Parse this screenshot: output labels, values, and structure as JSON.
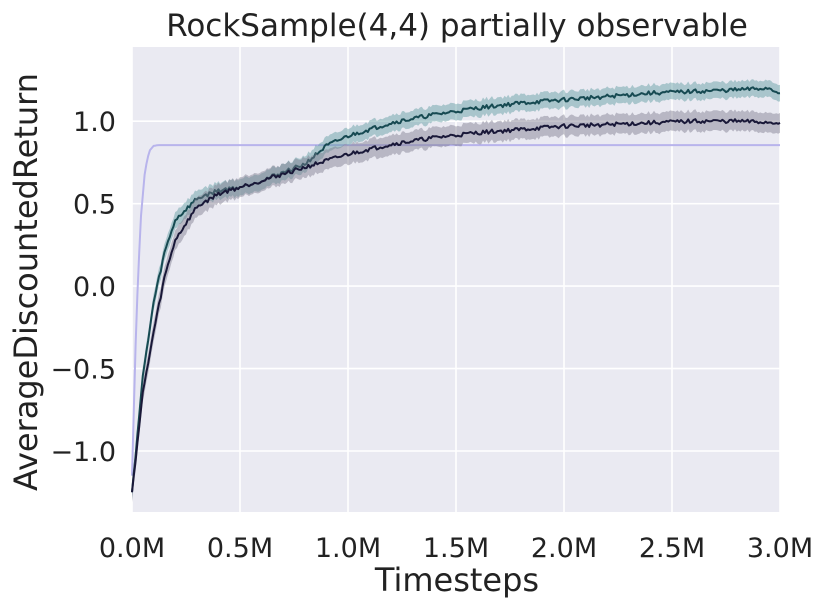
{
  "chart_data": {
    "type": "line",
    "title": "RockSample(4,4) partially observable",
    "xlabel": "Timesteps",
    "ylabel": "AverageDiscountedReturn",
    "xlim": [
      0,
      3.0
    ],
    "ylim": [
      -1.37,
      1.45
    ],
    "x_unit": "millions of timesteps",
    "grid": true,
    "legend": "none",
    "x_ticks": [
      {
        "value": 0.0,
        "label": "0.0M"
      },
      {
        "value": 0.5,
        "label": "0.5M"
      },
      {
        "value": 1.0,
        "label": "1.0M"
      },
      {
        "value": 1.5,
        "label": "1.5M"
      },
      {
        "value": 2.0,
        "label": "2.0M"
      },
      {
        "value": 2.5,
        "label": "2.5M"
      },
      {
        "value": 3.0,
        "label": "3.0M"
      }
    ],
    "y_ticks": [
      {
        "value": -1.0,
        "label": "−1.0"
      },
      {
        "value": -0.5,
        "label": "−0.5"
      },
      {
        "value": 0.0,
        "label": "0.0"
      },
      {
        "value": 0.5,
        "label": "0.5"
      },
      {
        "value": 1.0,
        "label": "1.0"
      }
    ],
    "series": [
      {
        "name": "lavender",
        "color": "#b8b4ec",
        "band_color": "#c8c4f0",
        "x": [
          0,
          0.02,
          0.04,
          0.06,
          0.08,
          0.1,
          0.12,
          0.2,
          3.0
        ],
        "y": [
          -1.15,
          -0.2,
          0.4,
          0.7,
          0.82,
          0.85,
          0.855,
          0.855,
          0.855
        ],
        "band": 0.0
      },
      {
        "name": "teal",
        "color": "#174a52",
        "band_color": "#5a9a9e",
        "x": [
          0,
          0.05,
          0.1,
          0.15,
          0.2,
          0.3,
          0.4,
          0.5,
          0.6,
          0.7,
          0.8,
          0.9,
          1.0,
          1.1,
          1.2,
          1.4,
          1.6,
          1.8,
          2.0,
          2.2,
          2.4,
          2.6,
          2.8,
          2.95,
          3.0
        ],
        "y": [
          -1.25,
          -0.55,
          -0.1,
          0.2,
          0.4,
          0.53,
          0.58,
          0.6,
          0.64,
          0.69,
          0.74,
          0.85,
          0.91,
          0.95,
          0.99,
          1.04,
          1.08,
          1.11,
          1.13,
          1.15,
          1.17,
          1.18,
          1.19,
          1.2,
          1.17
        ],
        "band": 0.05
      },
      {
        "name": "navy",
        "color": "#191838",
        "band_color": "#7c7b8c",
        "x": [
          0,
          0.05,
          0.1,
          0.15,
          0.2,
          0.3,
          0.4,
          0.5,
          0.6,
          0.7,
          0.8,
          0.9,
          1.0,
          1.1,
          1.2,
          1.4,
          1.6,
          1.8,
          2.0,
          2.2,
          2.4,
          2.6,
          2.8,
          3.0
        ],
        "y": [
          -1.25,
          -0.65,
          -0.28,
          0.05,
          0.28,
          0.48,
          0.56,
          0.6,
          0.64,
          0.68,
          0.72,
          0.76,
          0.8,
          0.83,
          0.86,
          0.9,
          0.93,
          0.95,
          0.97,
          0.98,
          0.99,
          1.0,
          1.0,
          0.99
        ],
        "band": 0.06
      }
    ]
  }
}
